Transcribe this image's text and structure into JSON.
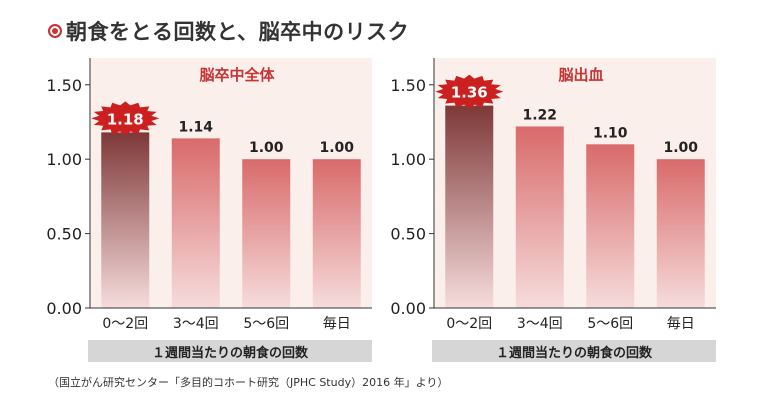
{
  "title": "朝食をとる回数と、脳卒中のリスク",
  "source": "（国立がん研究センター「多目的コホート研究（JPHC Study）2016 年」より）",
  "colors": {
    "accent": "#c73434",
    "panel_bg": "#fbefec",
    "highlight_bar_top": "#7e3838",
    "bar_top": "#d96a6a",
    "bar_bottom": "#f6dcdc",
    "burst": "#cc1f1f"
  },
  "chart_data": [
    {
      "type": "bar",
      "title": "脳卒中全体",
      "categories": [
        "0〜2回",
        "3〜4回",
        "5〜6回",
        "毎日"
      ],
      "values": [
        1.18,
        1.14,
        1.0,
        1.0
      ],
      "value_labels": [
        "1.18",
        "1.14",
        "1.00",
        "1.00"
      ],
      "highlight_index": 0,
      "xlabel": "１週間当たりの朝食の回数",
      "ylabel": "",
      "ylim": [
        0,
        1.68
      ],
      "yticks": [
        0,
        0.5,
        1.0,
        1.5
      ],
      "ytick_labels": [
        "0.00",
        "0.50",
        "1.00",
        "1.50"
      ],
      "grid": false,
      "legend": "none"
    },
    {
      "type": "bar",
      "title": "脳出血",
      "categories": [
        "0〜2回",
        "3〜4回",
        "5〜6回",
        "毎日"
      ],
      "values": [
        1.36,
        1.22,
        1.1,
        1.0
      ],
      "value_labels": [
        "1.36",
        "1.22",
        "1.10",
        "1.00"
      ],
      "highlight_index": 0,
      "xlabel": "１週間当たりの朝食の回数",
      "ylabel": "",
      "ylim": [
        0,
        1.68
      ],
      "yticks": [
        0,
        0.5,
        1.0,
        1.5
      ],
      "ytick_labels": [
        "0.00",
        "0.50",
        "1.00",
        "1.50"
      ],
      "grid": false,
      "legend": "none"
    }
  ]
}
